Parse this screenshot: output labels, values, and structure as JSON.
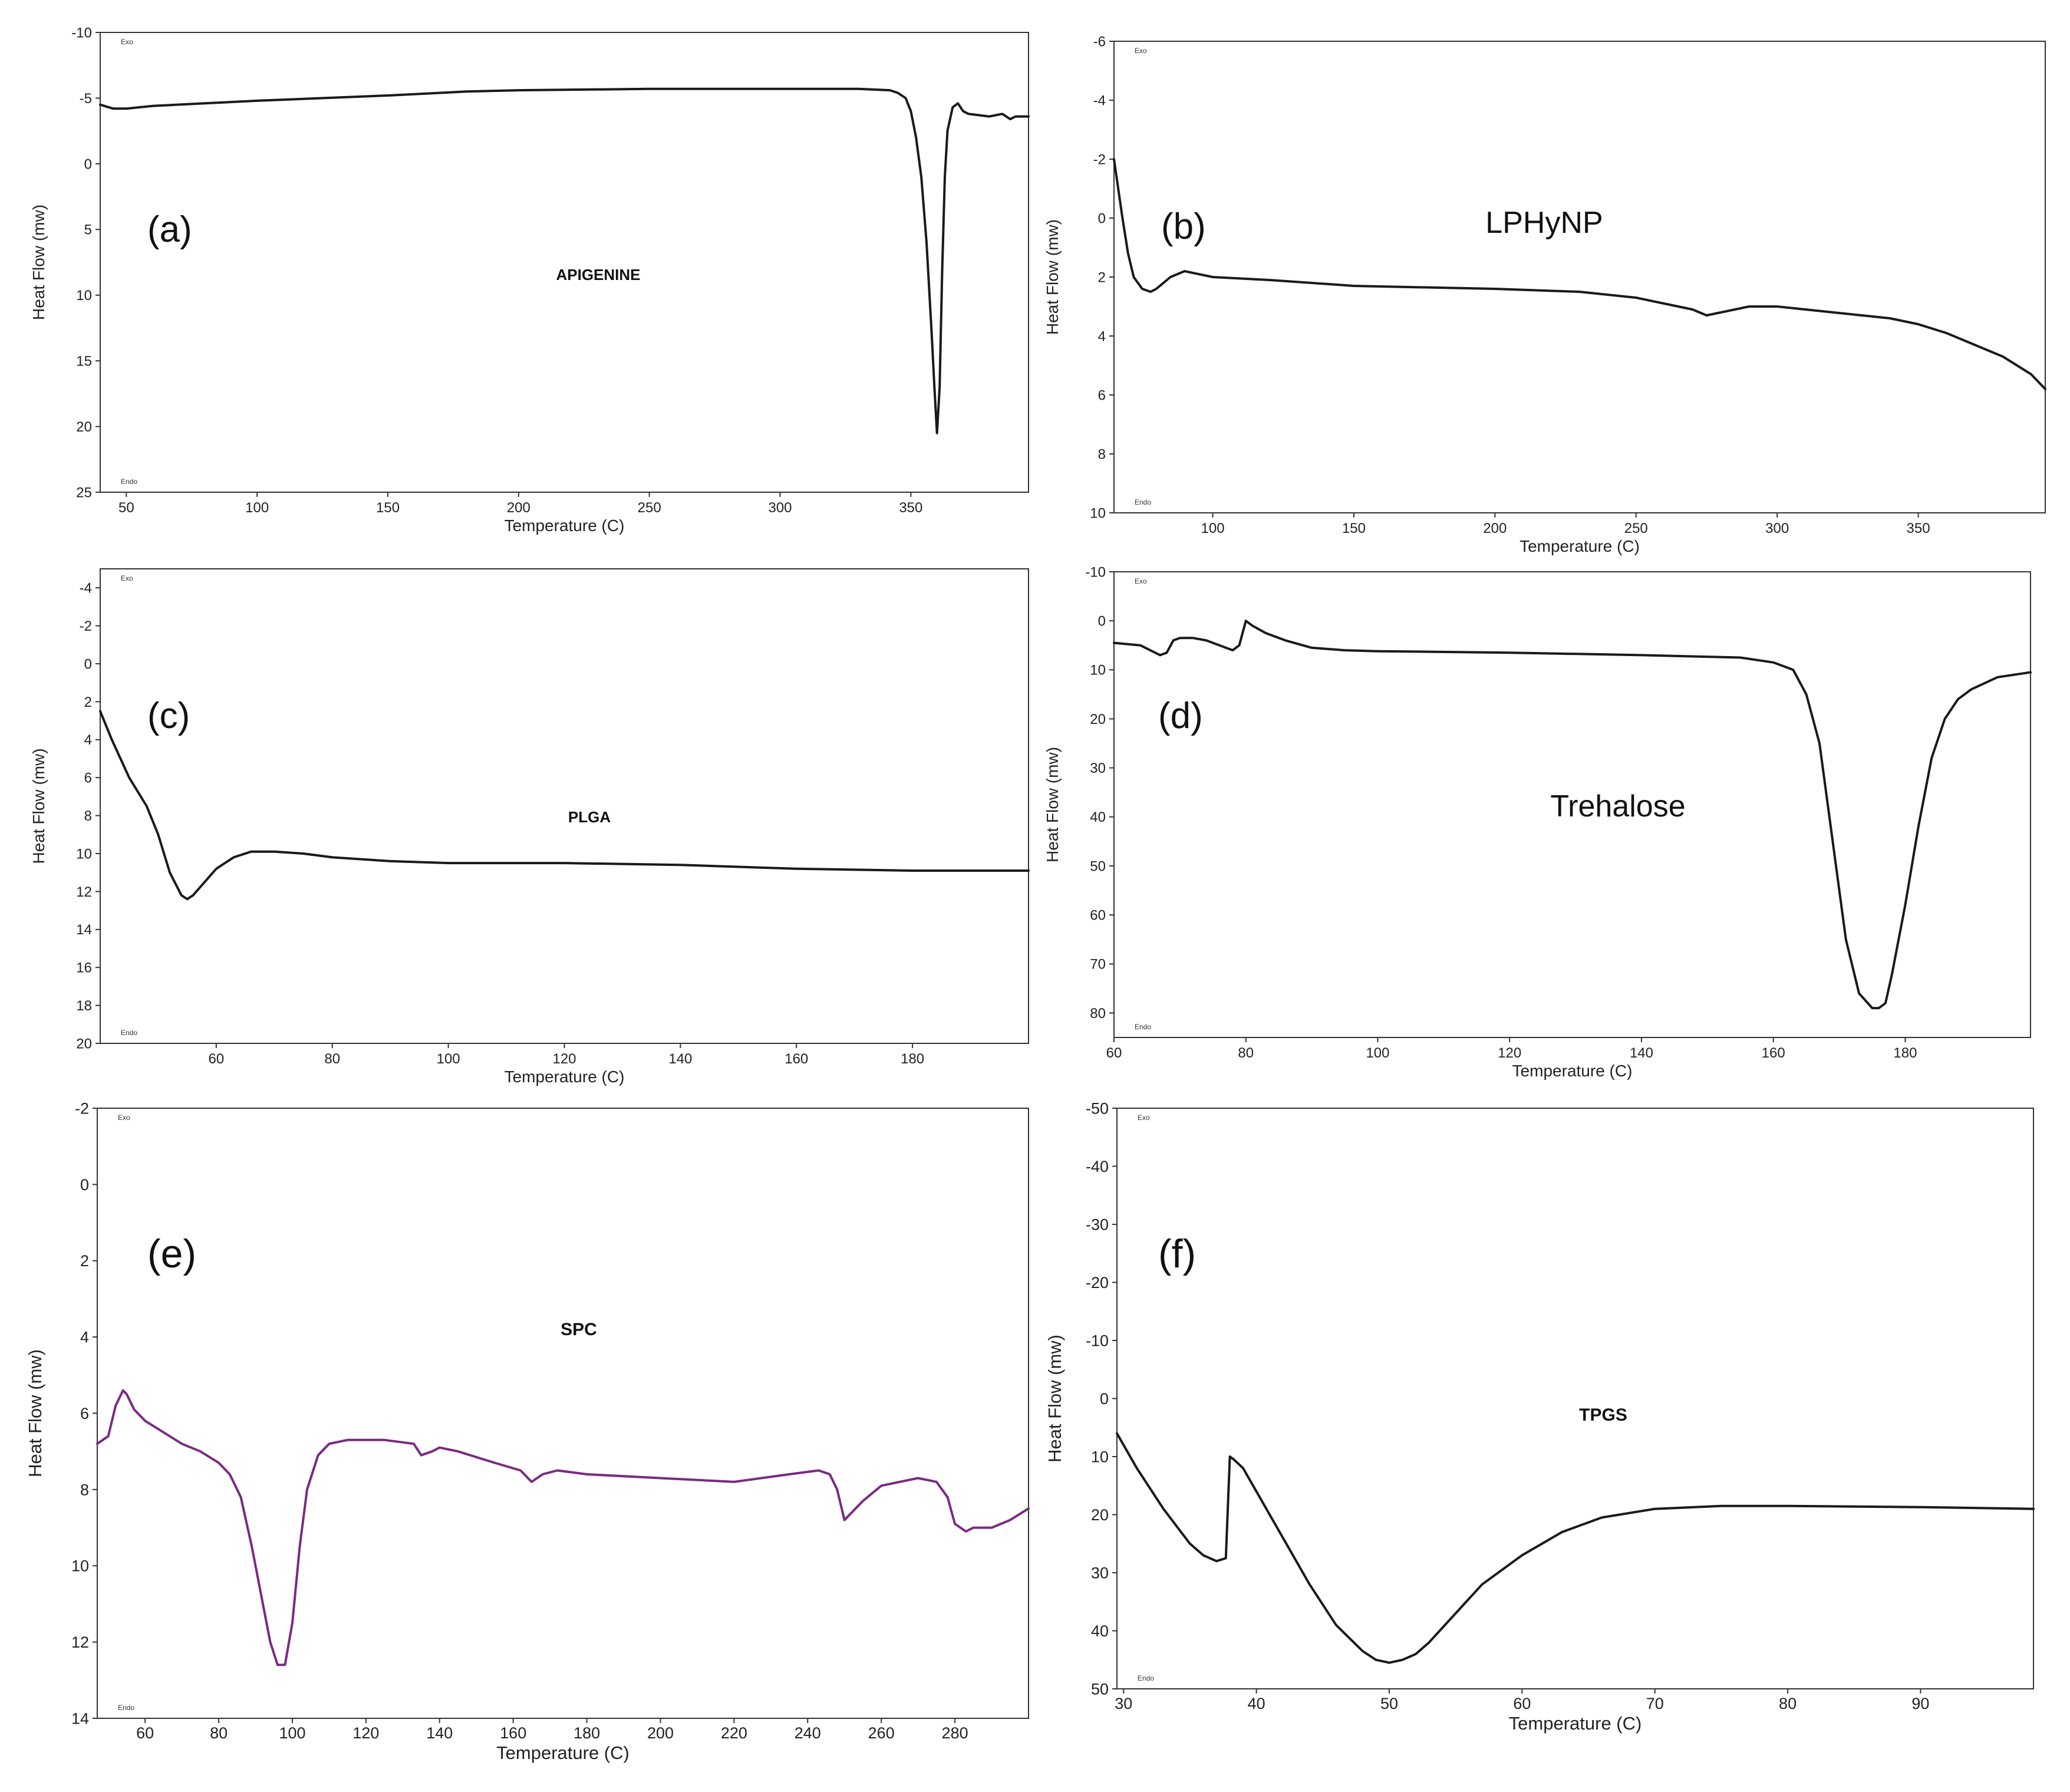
{
  "figure": {
    "chart_data": [
      {
        "type": "line",
        "panel_label": "(a)",
        "sample_label": "APIGENINE",
        "sample_label_style": "bold",
        "xlabel": "Temperature (C)",
        "ylabel": "Heat Flow (mw)",
        "xlim": [
          40,
          395
        ],
        "ylim": [
          -10,
          25
        ],
        "y_inverted": true,
        "xticks": [
          50,
          100,
          150,
          200,
          250,
          300,
          350
        ],
        "yticks": [
          -10,
          -5,
          0,
          5,
          10,
          15,
          20,
          25
        ],
        "exo_label": "Exo",
        "endo_label": "Endo",
        "line_color": "#1a1a1a",
        "series": [
          {
            "x": [
              40,
              45,
              50,
              60,
              80,
              100,
              150,
              180,
              200,
              250,
              300,
              330,
              342,
              345,
              348,
              350,
              352,
              354,
              356,
              358,
              359,
              360,
              361,
              362,
              363,
              364,
              366,
              368,
              370,
              372,
              376,
              380,
              385,
              388,
              390,
              395
            ],
            "y": [
              -4.5,
              -4.2,
              -4.2,
              -4.4,
              -4.6,
              -4.8,
              -5.2,
              -5.5,
              -5.6,
              -5.7,
              -5.7,
              -5.7,
              -5.6,
              -5.4,
              -5.0,
              -4.0,
              -2.0,
              1.0,
              6.0,
              13.0,
              17.0,
              20.5,
              17.0,
              8.0,
              1.0,
              -2.5,
              -4.3,
              -4.6,
              -4.0,
              -3.8,
              -3.7,
              -3.6,
              -3.8,
              -3.4,
              -3.6,
              -3.6
            ]
          }
        ]
      },
      {
        "type": "line",
        "panel_label": "(b)",
        "sample_label": "LPHyNP",
        "sample_label_style": "normal",
        "xlabel": "Temperature (C)",
        "ylabel": "Heat Flow (mw)",
        "xlim": [
          65,
          395
        ],
        "ylim": [
          -6,
          10
        ],
        "y_inverted": true,
        "xticks": [
          100,
          150,
          200,
          250,
          300,
          350
        ],
        "yticks": [
          -6,
          -4,
          -2,
          0,
          2,
          4,
          6,
          8,
          10
        ],
        "exo_label": "Exo",
        "endo_label": "Endo",
        "line_color": "#1a1a1a",
        "series": [
          {
            "x": [
              65,
              68,
              70,
              72,
              75,
              78,
              80,
              85,
              90,
              95,
              100,
              120,
              150,
              200,
              230,
              250,
              260,
              270,
              275,
              280,
              290,
              300,
              310,
              320,
              330,
              340,
              350,
              360,
              370,
              380,
              390,
              395
            ],
            "y": [
              -2.0,
              0.0,
              1.2,
              2.0,
              2.4,
              2.5,
              2.4,
              2.0,
              1.8,
              1.9,
              2.0,
              2.1,
              2.3,
              2.4,
              2.5,
              2.7,
              2.9,
              3.1,
              3.3,
              3.2,
              3.0,
              3.0,
              3.1,
              3.2,
              3.3,
              3.4,
              3.6,
              3.9,
              4.3,
              4.7,
              5.3,
              5.8
            ]
          }
        ]
      },
      {
        "type": "line",
        "panel_label": "(c)",
        "sample_label": "PLGA",
        "sample_label_style": "bold",
        "xlabel": "Temperature (C)",
        "ylabel": "Heat Flow (mw)",
        "xlim": [
          40,
          200
        ],
        "ylim": [
          -5,
          20
        ],
        "y_inverted": true,
        "xticks": [
          60,
          80,
          100,
          120,
          140,
          160,
          180
        ],
        "yticks": [
          -4,
          -2,
          0,
          2,
          4,
          6,
          8,
          10,
          12,
          14,
          16,
          18,
          20
        ],
        "exo_label": "Exo",
        "endo_label": "Endo",
        "line_color": "#1a1a1a",
        "series": [
          {
            "x": [
              40,
              42,
              45,
              48,
              50,
              52,
              54,
              55,
              56,
              58,
              60,
              63,
              66,
              70,
              75,
              80,
              90,
              100,
              120,
              140,
              160,
              180,
              200
            ],
            "y": [
              2.5,
              4.0,
              6.0,
              7.5,
              9.0,
              11.0,
              12.2,
              12.4,
              12.2,
              11.5,
              10.8,
              10.2,
              9.9,
              9.9,
              10.0,
              10.2,
              10.4,
              10.5,
              10.5,
              10.6,
              10.8,
              10.9,
              10.9
            ]
          }
        ]
      },
      {
        "type": "line",
        "panel_label": "(d)",
        "sample_label": "Trehalose",
        "sample_label_style": "normal",
        "xlabel": "Temperature (C)",
        "ylabel": "Heat Flow (mw)",
        "xlim": [
          60,
          199
        ],
        "ylim": [
          -10,
          85
        ],
        "y_inverted": true,
        "xticks": [
          60,
          80,
          100,
          120,
          140,
          160,
          180
        ],
        "yticks": [
          -10,
          0,
          10,
          20,
          30,
          40,
          50,
          60,
          70,
          80
        ],
        "exo_label": "Exo",
        "endo_label": "Endo",
        "line_color": "#1a1a1a",
        "series": [
          {
            "x": [
              60,
              64,
              67,
              68,
              69,
              70,
              72,
              74,
              76,
              78,
              79,
              80,
              81,
              83,
              86,
              90,
              95,
              100,
              120,
              140,
              155,
              160,
              163,
              165,
              167,
              169,
              171,
              173,
              175,
              176,
              177,
              178,
              180,
              182,
              184,
              186,
              188,
              190,
              194,
              199
            ],
            "y": [
              4.5,
              5.0,
              7.0,
              6.5,
              4.0,
              3.5,
              3.5,
              4.0,
              5.0,
              6.0,
              5.0,
              0.0,
              1.0,
              2.5,
              4.0,
              5.5,
              6.0,
              6.2,
              6.5,
              7.0,
              7.5,
              8.5,
              10.0,
              15.0,
              25.0,
              45.0,
              65.0,
              76.0,
              79.0,
              79.0,
              78.0,
              72.0,
              58.0,
              42.0,
              28.0,
              20.0,
              16.0,
              14.0,
              11.5,
              10.5
            ]
          }
        ]
      },
      {
        "type": "line",
        "panel_label": "(e)",
        "sample_label": "SPC",
        "sample_label_style": "bold",
        "xlabel": "Temperature (C)",
        "ylabel": "Heat Flow (mw)",
        "xlim": [
          47,
          300
        ],
        "ylim": [
          -2,
          14
        ],
        "y_inverted": true,
        "xticks": [
          60,
          80,
          100,
          120,
          140,
          160,
          180,
          200,
          220,
          240,
          260,
          280
        ],
        "yticks": [
          -2,
          0,
          2,
          4,
          6,
          8,
          10,
          12,
          14
        ],
        "exo_label": "Exo",
        "endo_label": "Endo",
        "line_color": "#7a2a82",
        "series": [
          {
            "x": [
              47,
              50,
              52,
              54,
              55,
              57,
              60,
              65,
              70,
              75,
              80,
              83,
              86,
              89,
              92,
              94,
              96,
              98,
              100,
              102,
              104,
              107,
              110,
              115,
              125,
              133,
              135,
              138,
              140,
              145,
              155,
              162,
              165,
              168,
              172,
              180,
              200,
              220,
              235,
              243,
              246,
              248,
              250,
              255,
              260,
              265,
              270,
              275,
              278,
              280,
              283,
              285,
              290,
              295,
              300
            ],
            "y": [
              6.8,
              6.6,
              5.8,
              5.4,
              5.5,
              5.9,
              6.2,
              6.5,
              6.8,
              7.0,
              7.3,
              7.6,
              8.2,
              9.5,
              11.0,
              12.0,
              12.6,
              12.6,
              11.5,
              9.5,
              8.0,
              7.1,
              6.8,
              6.7,
              6.7,
              6.8,
              7.1,
              7.0,
              6.9,
              7.0,
              7.3,
              7.5,
              7.8,
              7.6,
              7.5,
              7.6,
              7.7,
              7.8,
              7.6,
              7.5,
              7.6,
              8.0,
              8.8,
              8.3,
              7.9,
              7.8,
              7.7,
              7.8,
              8.2,
              8.9,
              9.1,
              9.0,
              9.0,
              8.8,
              8.5
            ]
          }
        ]
      },
      {
        "type": "line",
        "panel_label": "(f)",
        "sample_label": "TPGS",
        "sample_label_style": "bold",
        "xlabel": "Temperature (C)",
        "ylabel": "Heat Flow (mw)",
        "xlim": [
          29.5,
          98.5
        ],
        "ylim": [
          -50,
          50
        ],
        "y_inverted": true,
        "xticks": [
          30,
          40,
          50,
          60,
          70,
          80,
          90
        ],
        "yticks": [
          -50,
          -40,
          -30,
          -20,
          -10,
          0,
          10,
          20,
          30,
          40,
          50
        ],
        "exo_label": "Exo",
        "endo_label": "Endo",
        "line_color": "#1a1a1a",
        "series": [
          {
            "x": [
              29.5,
              31,
              33,
              35,
              36,
              37,
              37.7,
              38,
              38.3,
              39,
              40,
              42,
              44,
              46,
              48,
              49,
              50,
              51,
              52,
              53,
              55,
              57,
              60,
              63,
              66,
              70,
              75,
              80,
              90,
              98.5
            ],
            "y": [
              6.0,
              12.0,
              19.0,
              25.0,
              27.0,
              28.0,
              27.5,
              10.0,
              10.5,
              12.0,
              16.0,
              24.0,
              32.0,
              39.0,
              43.5,
              45.0,
              45.5,
              45.0,
              44.0,
              42.0,
              37.0,
              32.0,
              27.0,
              23.0,
              20.5,
              19.0,
              18.5,
              18.5,
              18.7,
              19.0
            ]
          }
        ]
      }
    ]
  }
}
